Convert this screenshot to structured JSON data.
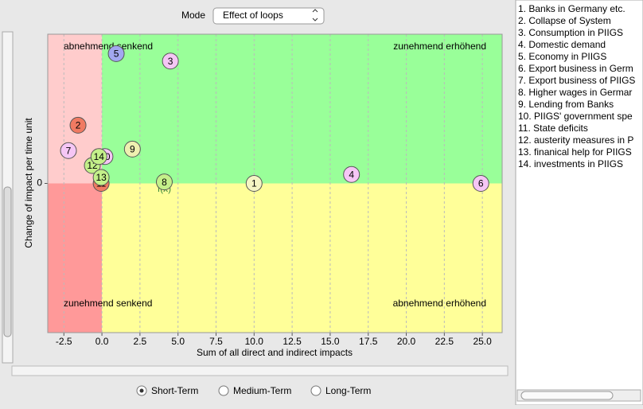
{
  "mode": {
    "label": "Mode",
    "selected": "Effect of loops"
  },
  "chart_data": {
    "type": "scatter",
    "x_label": "Sum of all direct and indirect impacts",
    "y_label": "Change of impact per time unit",
    "x": [
      10.0,
      -1.57,
      4.5,
      16.4,
      0.94,
      24.9,
      -2.2,
      4.1,
      2.0,
      0.2,
      -0.05,
      -0.63,
      -0.05,
      -0.2
    ],
    "values": [
      0,
      0.39,
      0.82,
      0.06,
      0.87,
      0,
      0.22,
      0.01,
      0.23,
      0.18,
      0,
      0.12,
      0.04,
      0.18
    ],
    "labels": [
      "1",
      "2",
      "3",
      "4",
      "5",
      "6",
      "7",
      "8",
      "9",
      "10",
      "11",
      "12",
      "13",
      "14"
    ],
    "colors": [
      "#f5f5c4",
      "#f07a62",
      "#f5c6f5",
      "#f5c6f5",
      "#a2a8f0",
      "#f5c6f5",
      "#f5c6f5",
      "#c4f08a",
      "#eef0b0",
      "#f5c6f5",
      "#f07a62",
      "#c4f08a",
      "#c4f08a",
      "#c4f08a"
    ],
    "xlim": [
      -3.56,
      26.3
    ],
    "ylim": [
      -1,
      1
    ],
    "xticks": [
      -2.5,
      {
        "value": 0,
        "label": "0.0"
      },
      2.5,
      {
        "value": 5,
        "label": "5.0"
      },
      7.5,
      {
        "value": 10,
        "label": "10.0"
      },
      12.5,
      {
        "value": 15,
        "label": "15.0"
      },
      17.5,
      {
        "value": 20,
        "label": "20.0"
      },
      22.5,
      {
        "value": 25,
        "label": "25.0"
      }
    ],
    "yticks": [
      0
    ],
    "grid": true,
    "quadrant_colors": {
      "top_left": "#ffcccc",
      "top_right": "#99ff99",
      "bottom_left": "#ff9999",
      "bottom_right": "#ffff99"
    },
    "quadrant_labels": [
      {
        "text": "abnehmend senkend",
        "corner": "top-left"
      },
      {
        "text": "zunehmend erhöhend",
        "corner": "top-right"
      },
      {
        "text": "zunehmend senkend",
        "corner": "bottom-left"
      },
      {
        "text": "abnehmend erhöhend",
        "corner": "bottom-right"
      }
    ],
    "annotations": [
      {
        "text": "f(x)",
        "x": 4.1,
        "y": -0.04
      }
    ]
  },
  "list": [
    "1. Banks in Germany etc.",
    "2. Collapse of System",
    "3. Consumption in PIIGS",
    "4. Domestic demand",
    "5. Economy in PIIGS",
    "6. Export business in Germ",
    "7. Export business of PIIGS",
    "8. Higher wages in Germar",
    "9. Lending from Banks",
    "10. PIIGS' government spe",
    "11. State deficits",
    "12. austerity measures in P",
    "13. finanical help for PIIGS",
    "14. investments in PIIGS"
  ],
  "options": [
    {
      "label": "Short-Term",
      "selected": true
    },
    {
      "label": "Medium-Term",
      "selected": false
    },
    {
      "label": "Long-Term",
      "selected": false
    }
  ]
}
